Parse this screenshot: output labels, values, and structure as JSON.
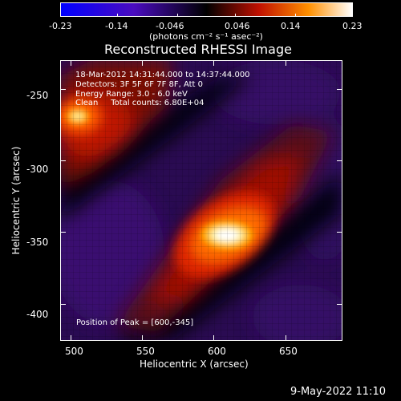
{
  "colorbar": {
    "tick_labels": [
      "-0.23",
      "-0.14",
      "-0.046",
      "0.046",
      "0.14",
      "0.23"
    ],
    "unit_label": "(photons cm⁻² s⁻¹ asec⁻²)"
  },
  "title": "Reconstructed RHESSI Image",
  "annotations": {
    "time_range": "18-Mar-2012 14:31:44.000 to 14:37:44.000",
    "detectors": "Detectors: 3F 5F 6F 7F 8F, Att 0",
    "energy_range": "Energy Range: 3.0 - 6.0 keV",
    "clean_counts": "Clean     Total counts: 6.80E+04",
    "peak_position": "Position of Peak = [600,-345]"
  },
  "axes": {
    "xlabel": "Heliocentric X (arcsec)",
    "ylabel": "Heliocentric Y (arcsec)",
    "xticks": [
      "500",
      "550",
      "600",
      "650"
    ],
    "yticks": [
      "-250",
      "-300",
      "-350",
      "-400"
    ]
  },
  "footer_timestamp": "9-May-2022 11:10",
  "colors": {
    "background": "#000000",
    "colormap": [
      "#0000ff",
      "#3a0a9a",
      "#000000",
      "#6a0a00",
      "#ff3000",
      "#ffb000",
      "#ffffff"
    ]
  },
  "chart_data": {
    "type": "heatmap",
    "title": "Reconstructed RHESSI Image",
    "xlabel": "Heliocentric X (arcsec)",
    "ylabel": "Heliocentric Y (arcsec)",
    "xlim": [
      493,
      690
    ],
    "ylim": [
      -426,
      -230
    ],
    "xticks": [
      500,
      550,
      600,
      650
    ],
    "yticks": [
      -250,
      -300,
      -350,
      -400
    ],
    "zlim": [
      -0.23,
      0.23
    ],
    "peak": [
      600,
      -345
    ],
    "sources": [
      {
        "x": 600,
        "y": -345,
        "peak": 0.23
      },
      {
        "x": 503,
        "y": -265,
        "peak": 0.15
      }
    ]
  }
}
